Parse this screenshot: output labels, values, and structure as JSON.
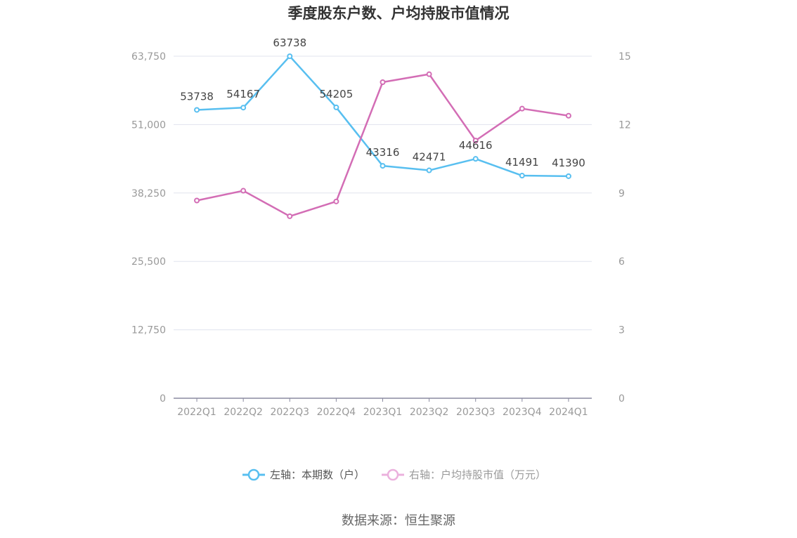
{
  "chart_data": {
    "type": "line",
    "title": "季度股东户数、户均持股市值情况",
    "categories": [
      "2022Q1",
      "2022Q2",
      "2022Q3",
      "2022Q4",
      "2023Q1",
      "2023Q2",
      "2023Q3",
      "2023Q4",
      "2024Q1"
    ],
    "left_axis": {
      "ticks": [
        "0",
        "12,750",
        "25,500",
        "38,250",
        "51,000",
        "63,750"
      ],
      "range": [
        0,
        63750
      ]
    },
    "right_axis": {
      "ticks": [
        "0",
        "3",
        "6",
        "9",
        "12",
        "15"
      ],
      "range": [
        0,
        15
      ]
    },
    "grid": true,
    "legend_position": "bottom",
    "series": [
      {
        "name": "左轴：本期数（户）",
        "axis": "left",
        "color": "#58bff0",
        "values": [
          53738,
          54167,
          63738,
          54205,
          43316,
          42471,
          44616,
          41491,
          41390
        ],
        "labels": [
          "53738",
          "54167",
          "63738",
          "54205",
          "43316",
          "42471",
          "44616",
          "41491",
          "41390"
        ]
      },
      {
        "name": "右轴：户均持股市值（万元）",
        "axis": "right",
        "color": "#d36db5",
        "values": [
          8.67,
          9.1,
          7.98,
          8.63,
          13.86,
          14.21,
          11.3,
          12.7,
          12.39
        ]
      }
    ],
    "source": "数据来源：恒生聚源"
  }
}
